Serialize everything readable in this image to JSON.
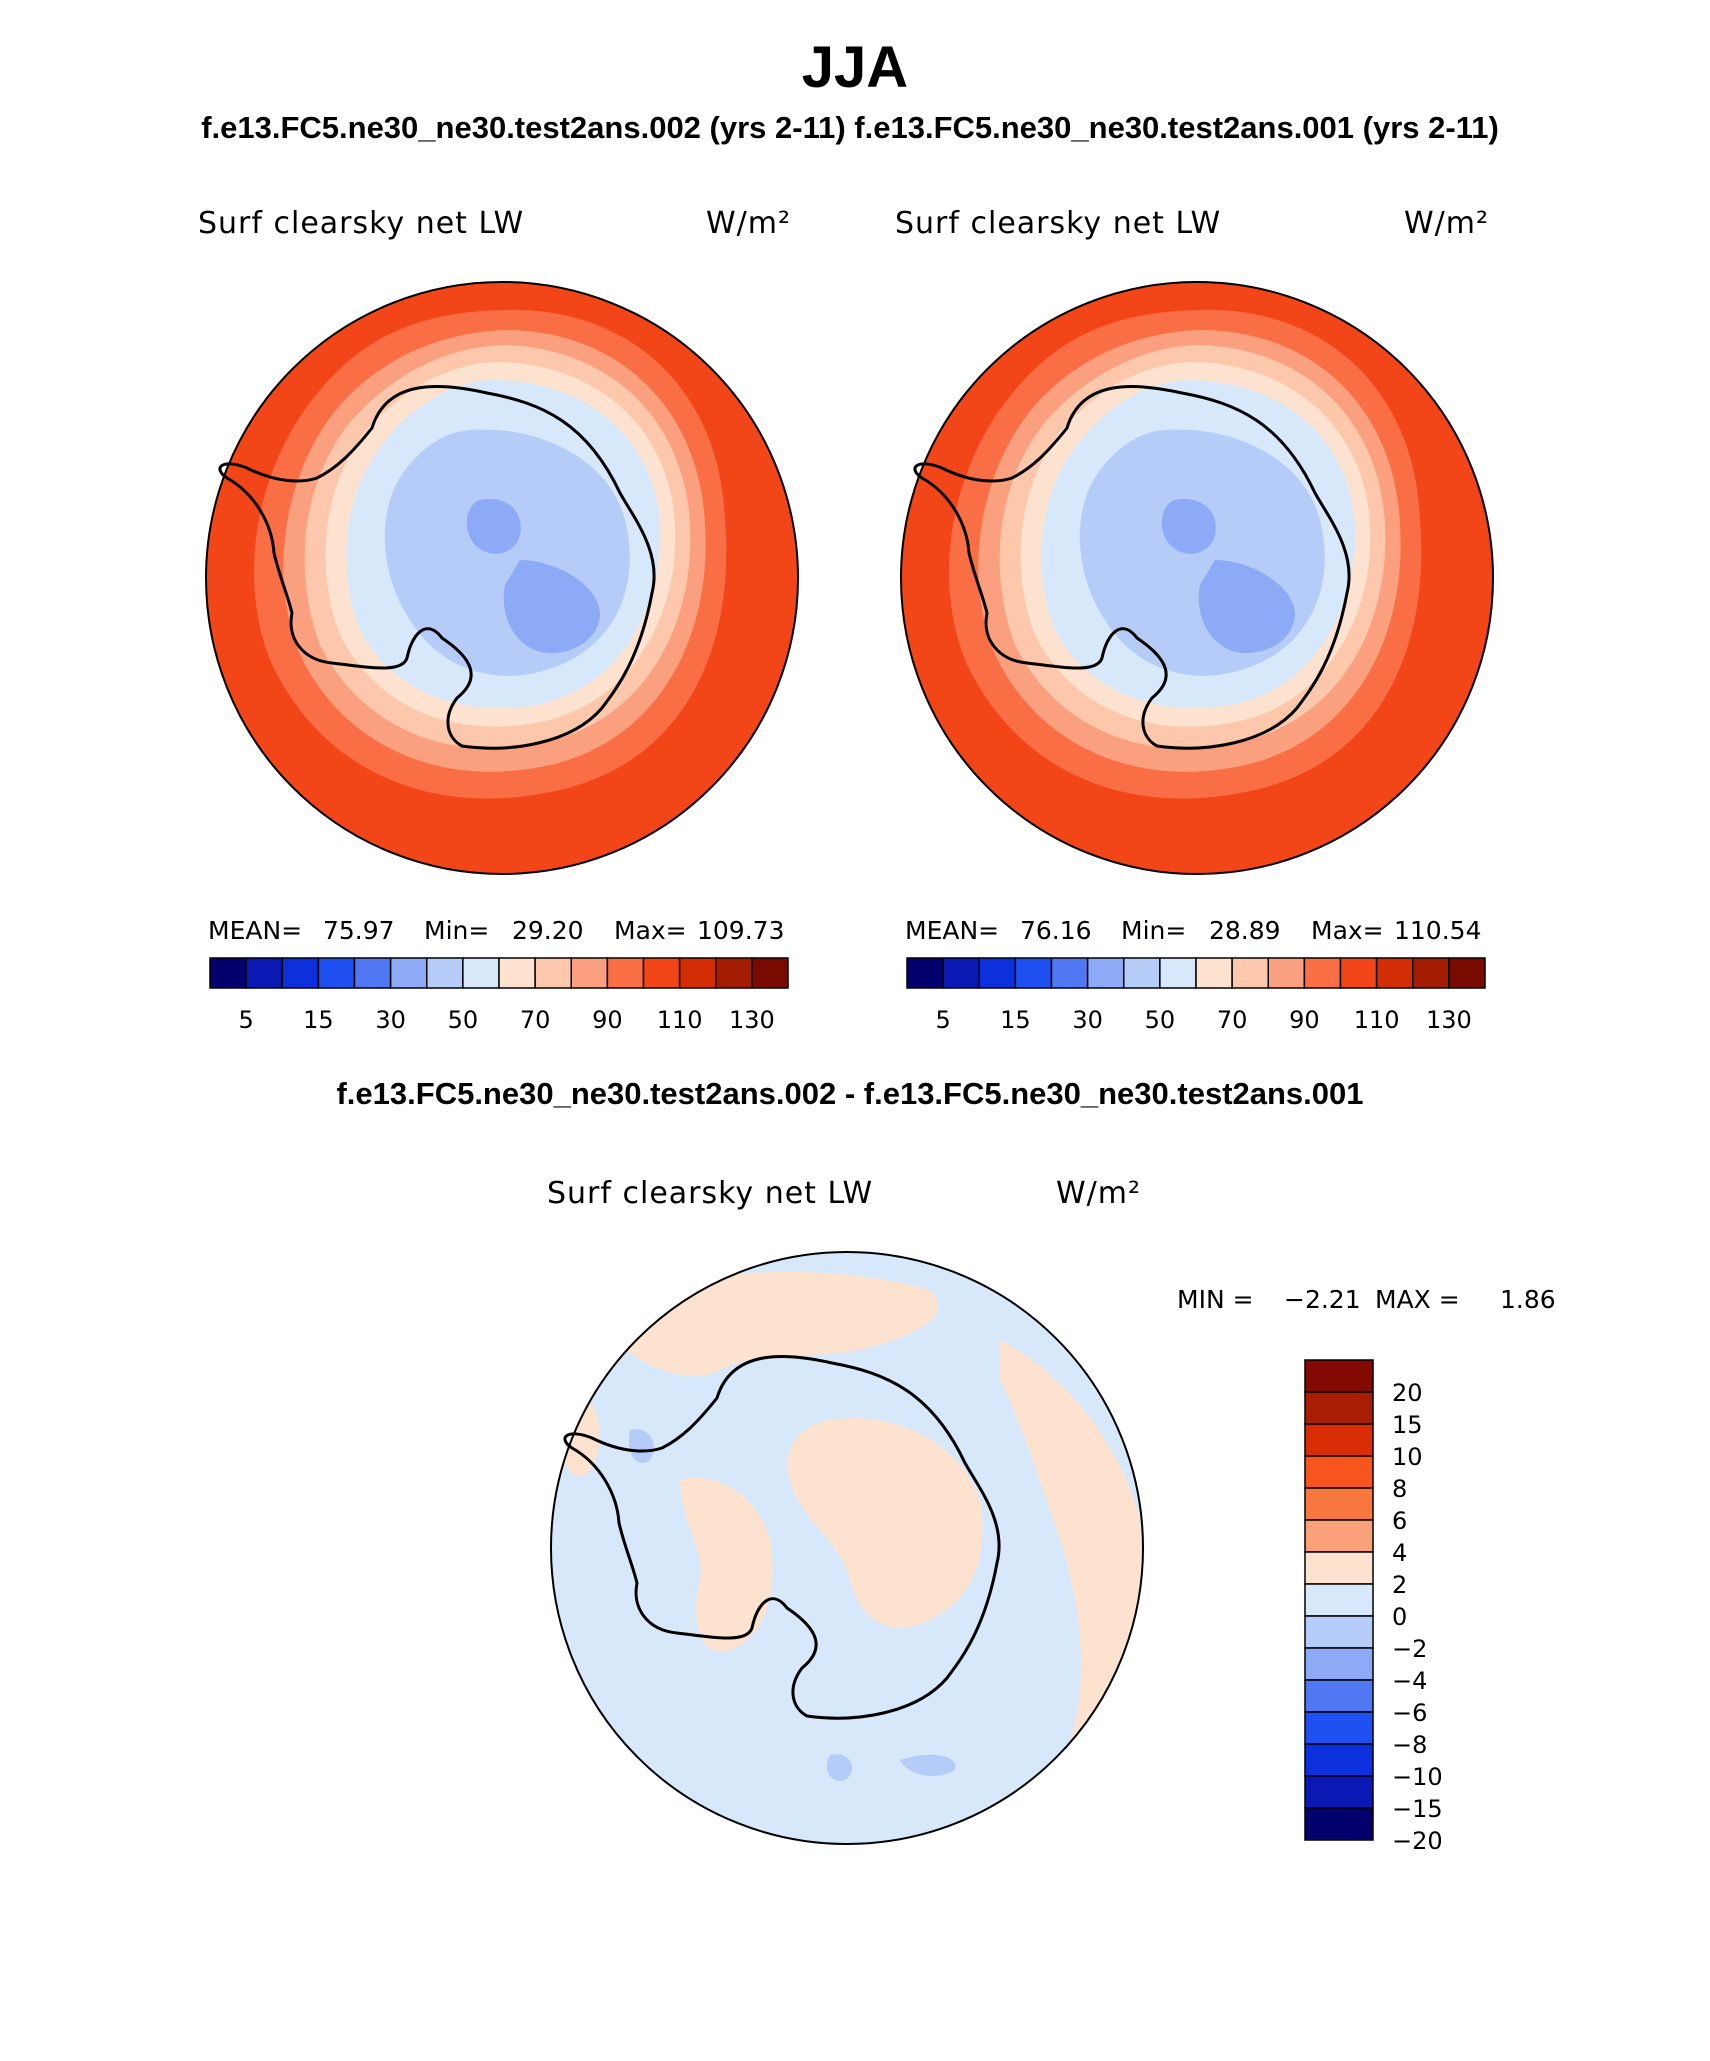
{
  "header": {
    "season": "JJA",
    "cases_title": "f.e13.FC5.ne30_ne30.test2ans.002 (yrs 2-11) f.e13.FC5.ne30_ne30.test2ans.001 (yrs 2-11)",
    "diff_title": "f.e13.FC5.ne30_ne30.test2ans.002 - f.e13.FC5.ne30_ne30.test2ans.001"
  },
  "panels": [
    {
      "variable": "Surf clearsky net LW",
      "units": "W/m²",
      "mean_label": "MEAN=",
      "mean": "75.97",
      "min_label": "Min=",
      "min": "29.20",
      "max_label": "Max=",
      "max": "109.73"
    },
    {
      "variable": "Surf clearsky net LW",
      "units": "W/m²",
      "mean_label": "MEAN=",
      "mean": "76.16",
      "min_label": "Min=",
      "min": "28.89",
      "max_label": "Max=",
      "max": "110.54"
    },
    {
      "variable": "Surf clearsky net LW",
      "units": "W/m²",
      "min_label": "MIN =",
      "min": "−2.21",
      "max_label": "MAX =",
      "max": "1.86"
    }
  ],
  "colorbar_cases": {
    "colors": [
      "#04006e",
      "#0a18b4",
      "#0c30dc",
      "#1e50f2",
      "#5078f2",
      "#8caaf5",
      "#b4ccf7",
      "#d7e8fa",
      "#fde3cf",
      "#fcc7ab",
      "#fba07e",
      "#f96e45",
      "#f24518",
      "#d22d05",
      "#a41c02",
      "#780a00"
    ],
    "tick_labels": [
      "5",
      "15",
      "30",
      "50",
      "70",
      "90",
      "110",
      "130"
    ]
  },
  "colorbar_diff": {
    "colors": [
      "#820a00",
      "#a81e02",
      "#d82d05",
      "#f6551e",
      "#f8773f",
      "#faa17a",
      "#fde3cf",
      "#d7e8fa",
      "#b4ccf7",
      "#8caaf5",
      "#5078f2",
      "#1e50f2",
      "#0c30dc",
      "#0a18b4",
      "#04006e"
    ],
    "tick_labels": [
      "20",
      "15",
      "10",
      "8",
      "6",
      "4",
      "2",
      "0",
      "−2",
      "−4",
      "−6",
      "−8",
      "−10",
      "−15",
      "−20"
    ]
  },
  "chart_data": [
    {
      "type": "heatmap",
      "title": "Surf clearsky net LW",
      "subtitle": "f.e13.FC5.ne30_ne30.test2ans.002 (yrs 2-11)",
      "projection": "south polar stereographic",
      "units": "W/m²",
      "contour_levels": [
        5,
        10,
        15,
        20,
        30,
        40,
        50,
        60,
        70,
        80,
        90,
        100,
        110,
        120,
        130
      ],
      "mean": 75.97,
      "min": 29.2,
      "max": 109.73
    },
    {
      "type": "heatmap",
      "title": "Surf clearsky net LW",
      "subtitle": "f.e13.FC5.ne30_ne30.test2ans.001 (yrs 2-11)",
      "projection": "south polar stereographic",
      "units": "W/m²",
      "contour_levels": [
        5,
        10,
        15,
        20,
        30,
        40,
        50,
        60,
        70,
        80,
        90,
        100,
        110,
        120,
        130
      ],
      "mean": 76.16,
      "min": 28.89,
      "max": 110.54
    },
    {
      "type": "heatmap",
      "title": "Surf clearsky net LW",
      "subtitle": "f.e13.FC5.ne30_ne30.test2ans.002 - f.e13.FC5.ne30_ne30.test2ans.001",
      "projection": "south polar stereographic",
      "units": "W/m²",
      "contour_levels": [
        -20,
        -15,
        -10,
        -8,
        -6,
        -4,
        -2,
        0,
        2,
        4,
        6,
        8,
        10,
        15,
        20
      ],
      "min": -2.21,
      "max": 1.86
    }
  ]
}
